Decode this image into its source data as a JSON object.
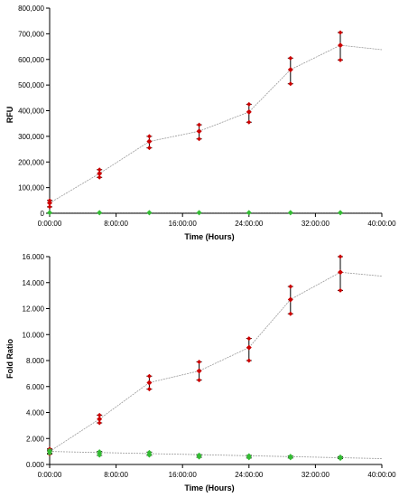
{
  "chart_data": [
    {
      "type": "scatter",
      "title": "",
      "xlabel": "Time (Hours)",
      "ylabel": "RFU",
      "xlim": [
        0,
        40
      ],
      "ylim": [
        0,
        800000
      ],
      "x_tick_labels": [
        "0:00:00",
        "8:00:00",
        "16:00:00",
        "24:00:00",
        "32:00:00",
        "40:00:00"
      ],
      "x_tick_values": [
        0,
        8,
        16,
        24,
        32,
        40
      ],
      "y_tick_labels": [
        "0",
        "100,000",
        "200,000",
        "300,000",
        "400,000",
        "500,000",
        "600,000",
        "700,000",
        "800,000"
      ],
      "y_tick_values": [
        0,
        100000,
        200000,
        300000,
        400000,
        500000,
        600000,
        700000,
        800000
      ],
      "grid": false,
      "series": [
        {
          "color": "#cc0000",
          "marker": "diamond",
          "x": [
            0,
            6,
            12,
            18,
            24,
            29,
            35
          ],
          "y": [
            40000,
            155000,
            280000,
            320000,
            395000,
            560000,
            655000
          ],
          "err_low": [
            25000,
            140000,
            255000,
            290000,
            355000,
            505000,
            598000
          ],
          "err_high": [
            50000,
            170000,
            300000,
            345000,
            425000,
            605000,
            705000
          ],
          "trend_x": [
            0,
            6,
            12,
            18,
            24,
            29,
            35,
            40
          ],
          "trend_y": [
            40000,
            155000,
            280000,
            320000,
            395000,
            560000,
            655000,
            638000
          ]
        },
        {
          "color": "#33bb33",
          "marker": "diamond",
          "x": [
            0,
            6,
            12,
            18,
            24,
            29,
            35
          ],
          "y": [
            2000,
            2000,
            2000,
            2000,
            2000,
            2000,
            2000
          ],
          "trend_x": [
            0,
            40
          ],
          "trend_y": [
            2000,
            2000
          ]
        }
      ]
    },
    {
      "type": "scatter",
      "title": "",
      "xlabel": "Time (Hours)",
      "ylabel": "Fold Ratio",
      "xlim": [
        0,
        40
      ],
      "ylim": [
        0,
        16
      ],
      "x_tick_labels": [
        "0:00:00",
        "8:00:00",
        "16:00:00",
        "24:00:00",
        "32:00:00",
        "40:00:00"
      ],
      "x_tick_values": [
        0,
        8,
        16,
        24,
        32,
        40
      ],
      "y_tick_labels": [
        "0.000",
        "2.000",
        "4.000",
        "6.000",
        "8.000",
        "10.000",
        "12.000",
        "14.000",
        "16.000"
      ],
      "y_tick_values": [
        0,
        2,
        4,
        6,
        8,
        10,
        12,
        14,
        16
      ],
      "grid": false,
      "series": [
        {
          "color": "#cc0000",
          "marker": "diamond",
          "x": [
            0,
            6,
            12,
            18,
            24,
            29,
            35
          ],
          "y": [
            1.0,
            3.5,
            6.3,
            7.2,
            9.0,
            12.7,
            14.8
          ],
          "err_low": [
            0.8,
            3.2,
            5.8,
            6.5,
            8.0,
            11.6,
            13.4
          ],
          "err_high": [
            1.2,
            3.8,
            6.8,
            7.9,
            9.7,
            13.7,
            16.0
          ],
          "trend_x": [
            0,
            6,
            12,
            18,
            24,
            29,
            35,
            40
          ],
          "trend_y": [
            1.0,
            3.5,
            6.3,
            7.2,
            9.0,
            12.7,
            14.8,
            14.5
          ]
        },
        {
          "color": "#33bb33",
          "marker": "diamond",
          "x": [
            0,
            6,
            12,
            18,
            24,
            29,
            35
          ],
          "y": [
            1.0,
            0.85,
            0.8,
            0.65,
            0.6,
            0.55,
            0.5
          ],
          "err_low": [
            0.85,
            0.7,
            0.7,
            0.55,
            0.5,
            0.5,
            0.45
          ],
          "err_high": [
            1.1,
            1.0,
            0.95,
            0.75,
            0.7,
            0.65,
            0.6
          ],
          "trend_x": [
            0,
            40
          ],
          "trend_y": [
            1.0,
            0.45
          ]
        }
      ]
    }
  ]
}
